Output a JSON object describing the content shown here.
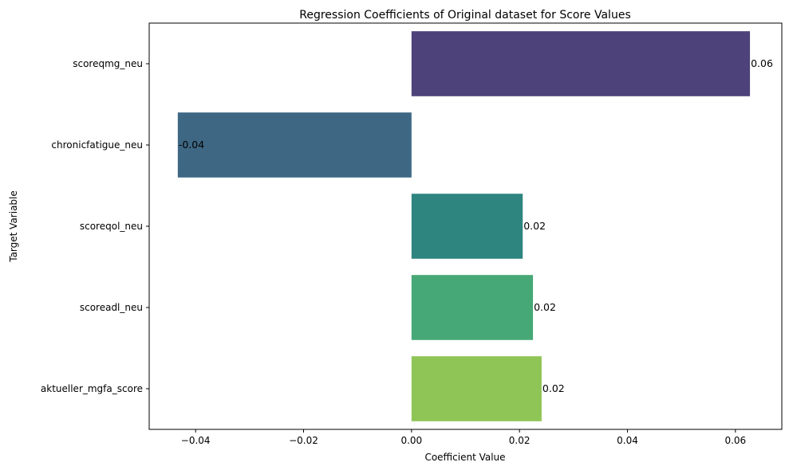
{
  "chart_data": {
    "type": "bar",
    "orientation": "horizontal",
    "title": "Regression Coefficients of Original dataset for Score Values",
    "xlabel": "Coefficient Value",
    "ylabel": "Target Variable",
    "xlim": [
      -0.0486,
      0.0686
    ],
    "grid": false,
    "legend": "none",
    "x_ticks": [
      -0.04,
      -0.02,
      0.0,
      0.02,
      0.04,
      0.06
    ],
    "x_tick_labels": [
      "−0.04",
      "−0.02",
      "0.00",
      "0.02",
      "0.04",
      "0.06"
    ],
    "categories": [
      "scoreqmg_neu",
      "chronicfatigue_neu",
      "scoreqol_neu",
      "scoreadl_neu",
      "aktueller_mgfa_score"
    ],
    "values": [
      0.0627,
      -0.0433,
      0.0206,
      0.0225,
      0.0241
    ],
    "value_labels": [
      "0.06",
      "-0.04",
      "0.02",
      "0.02",
      "0.02"
    ],
    "colors": [
      "#4d437a",
      "#3e6784",
      "#2e8580",
      "#46a876",
      "#8fc556"
    ]
  }
}
